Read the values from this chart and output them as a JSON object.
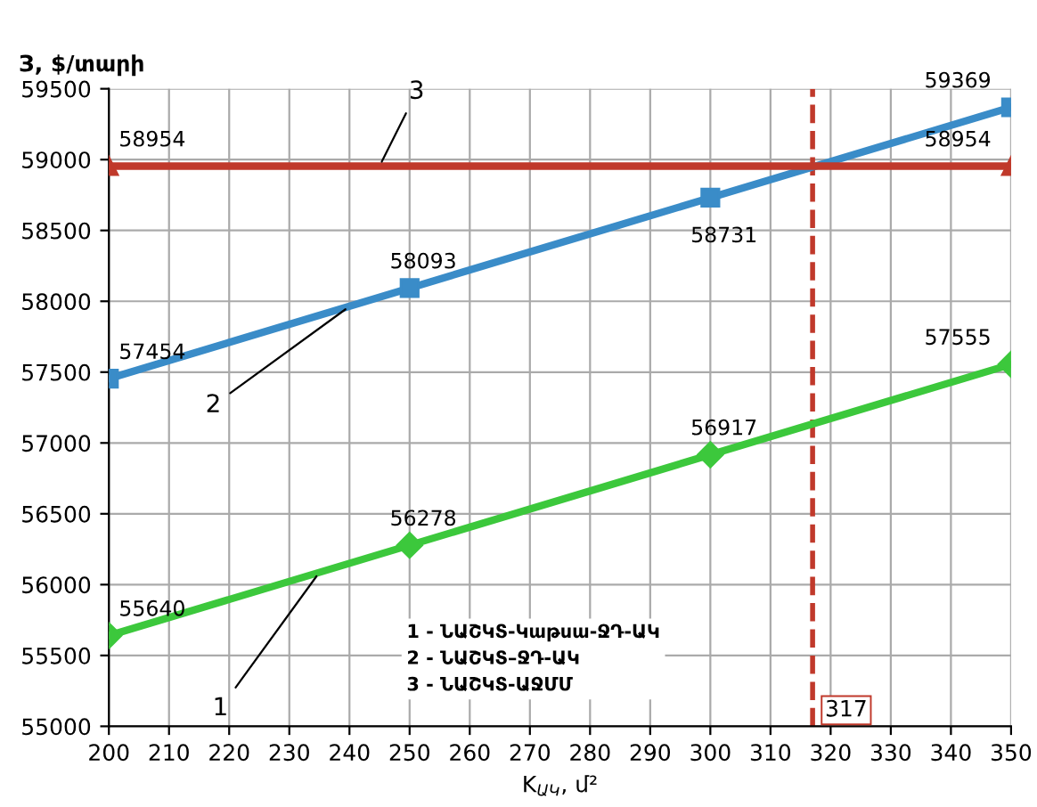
{
  "chart_data": {
    "type": "line",
    "ylabel": "З, $/տարի",
    "xlabel": "K$_{ԱԿ}$, մ²",
    "xlim": [
      200,
      350
    ],
    "xticks": [
      200,
      210,
      220,
      230,
      240,
      250,
      260,
      270,
      280,
      290,
      300,
      310,
      320,
      330,
      340,
      350
    ],
    "ylim": [
      55000,
      59500
    ],
    "yticks": [
      55000,
      55500,
      56000,
      56500,
      57000,
      57500,
      58000,
      58500,
      59000,
      59500
    ],
    "grid": true,
    "data_labels": true,
    "line_style": "solid",
    "series": [
      {
        "x": [
          200,
          250,
          300,
          350
        ],
        "values": [
          55640,
          56278,
          56917,
          57555
        ],
        "color": "#3cc83c",
        "marker": "diamond"
      },
      {
        "x": [
          200,
          250,
          300,
          350
        ],
        "values": [
          57454,
          58093,
          58731,
          59369
        ],
        "color": "#3a8cc8",
        "marker": "square"
      },
      {
        "x": [
          200,
          350
        ],
        "values": [
          58954,
          58954
        ],
        "color": "#c0392b",
        "marker": "triangle"
      }
    ],
    "ref_lines": [
      {
        "axis": "x",
        "value": 317,
        "label": "317",
        "color": "#c0392b",
        "line_style": "dashed"
      }
    ],
    "annotations": [
      {
        "text": "1",
        "x": 235,
        "y": 56087
      },
      {
        "text": "2",
        "x": 240,
        "y": 57964
      },
      {
        "text": "3",
        "x": 245,
        "y": 58954
      },
      "1 - ՆԱՇԿՏ-Կաթսա-ՋԴ-ԱԿ\n2 - ՆԱՇԿՏ–ՋԴ-ԱԿ\n3 - ՆԱՇԿՏ-ԱՋՄՄ"
    ]
  }
}
